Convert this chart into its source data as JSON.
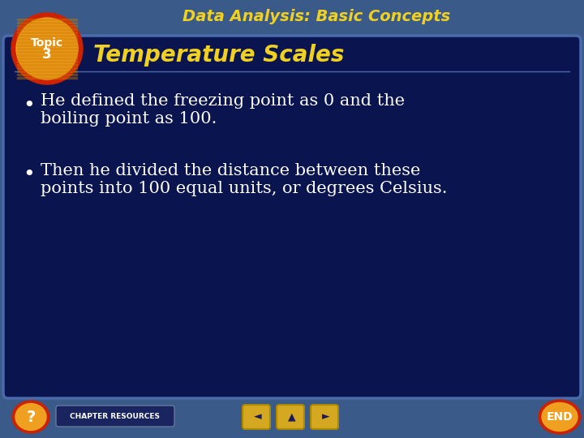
{
  "title": "Data Analysis: Basic Concepts",
  "subtitle": "Temperature Scales",
  "bullet1_line1": "He defined the freezing point as 0 and the",
  "bullet1_line2": "boiling point as 100.",
  "bullet2_line1": "Then he divided the distance between these",
  "bullet2_line2": "points into 100 equal units, or degrees Celsius.",
  "bg_outer": "#3a5a8a",
  "bg_inner": "#0a1550",
  "title_color": "#f0d020",
  "subtitle_color": "#f0d020",
  "bullet_color": "#ffffff",
  "topic_bg_orange": "#f0a020",
  "topic_bg_red": "#cc2200",
  "footer_bg": "#3a5a8a",
  "chapter_resources_text": "CHAPTER RESOURCES",
  "end_text": "END",
  "inner_box_edge": "#4a6aaa",
  "nav_color": "#d4a820"
}
